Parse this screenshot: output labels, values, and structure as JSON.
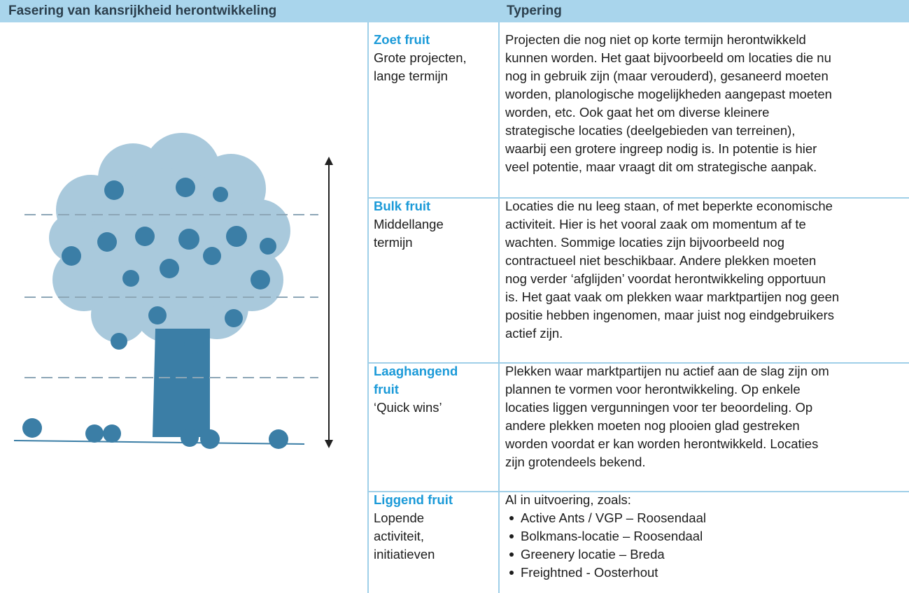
{
  "header": {
    "left": "Fasering van kansrijkheid herontwikkeling",
    "right": "Typering"
  },
  "rows": [
    {
      "name": "Zoet fruit",
      "subtitle": [
        "Grote projecten,",
        "lange termijn"
      ],
      "description": [
        "Projecten die nog niet op korte termijn herontwikkeld",
        "kunnen worden. Het gaat bijvoorbeeld om locaties die nu",
        "nog in gebruik zijn (maar verouderd), gesaneerd moeten",
        "worden, planologische mogelijkheden aangepast moeten",
        "worden, etc. Ook gaat het om diverse kleinere",
        "strategische locaties (deelgebieden van terreinen),",
        "waarbij een grotere ingreep nodig is. In potentie is hier",
        "veel potentie, maar vraagt dit om strategische aanpak."
      ]
    },
    {
      "name": "Bulk fruit",
      "subtitle": [
        "Middellange",
        "termijn"
      ],
      "description": [
        "Locaties die nu leeg staan, of met beperkte economische",
        "activiteit. Hier is het vooral zaak om momentum af te",
        "wachten. Sommige locaties zijn bijvoorbeeld nog",
        "contractueel niet beschikbaar. Andere plekken moeten",
        "nog verder ‘afglijden’ voordat herontwikkeling opportuun",
        "is. Het gaat vaak om plekken waar marktpartijen nog geen",
        "positie hebben ingenomen, maar juist nog eindgebruikers",
        "actief zijn."
      ]
    },
    {
      "name": "Laaghangend fruit",
      "subtitle": [
        "‘Quick wins’"
      ],
      "description": [
        "Plekken waar marktpartijen nu actief aan de slag zijn om",
        "plannen te vormen voor herontwikkeling. Op enkele",
        "locaties liggen vergunningen voor ter beoordeling. Op",
        "andere plekken moeten nog plooien glad gestreken",
        "worden voordat er kan worden herontwikkeld. Locaties",
        "zijn grotendeels bekend."
      ]
    },
    {
      "name": "Liggend fruit",
      "subtitle": [
        "Lopende",
        "activiteit,",
        "initiatieven"
      ],
      "description": [
        "Al in uitvoering, zoals:"
      ],
      "bullets": [
        "Active Ants / VGP – Roosendaal",
        "Bolkmans-locatie – Roosendaal",
        "Greenery locatie – Breda",
        "Freightned - Oosterhout"
      ]
    }
  ]
}
